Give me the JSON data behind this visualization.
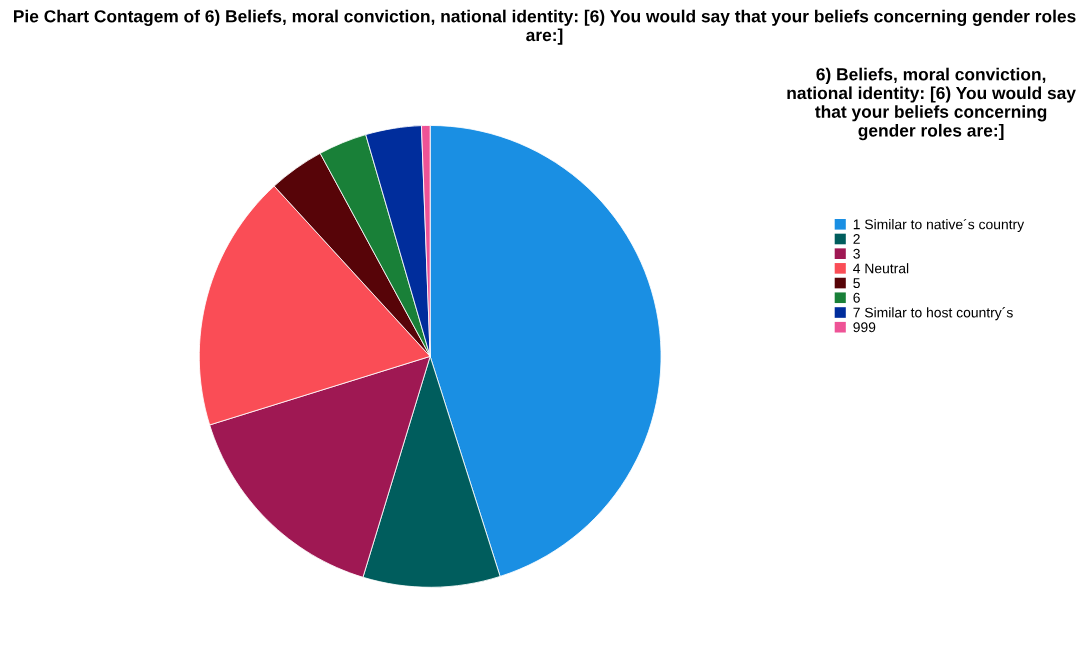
{
  "chart_data": {
    "type": "pie",
    "title": "Pie Chart Contagem of 6) Beliefs, moral conviction, national identity: [6) You would say that your beliefs concerning gender roles are:]",
    "legend_title": "6) Beliefs, moral conviction, national identity: [6) You would say that your beliefs concerning gender roles are:]",
    "categories": [
      "1 Similar to native´s country",
      "2",
      "3",
      "4 Neutral",
      "5",
      "6",
      "7 Similar to host country´s",
      "999"
    ],
    "values": [
      45.1,
      9.6,
      15.5,
      18.0,
      3.9,
      3.4,
      3.9,
      0.6
    ],
    "colors": [
      "#1a8fe3",
      "#005d5d",
      "#9f1853",
      "#fa4d56",
      "#570408",
      "#198038",
      "#002d9c",
      "#ee5396"
    ],
    "legend": "right"
  }
}
